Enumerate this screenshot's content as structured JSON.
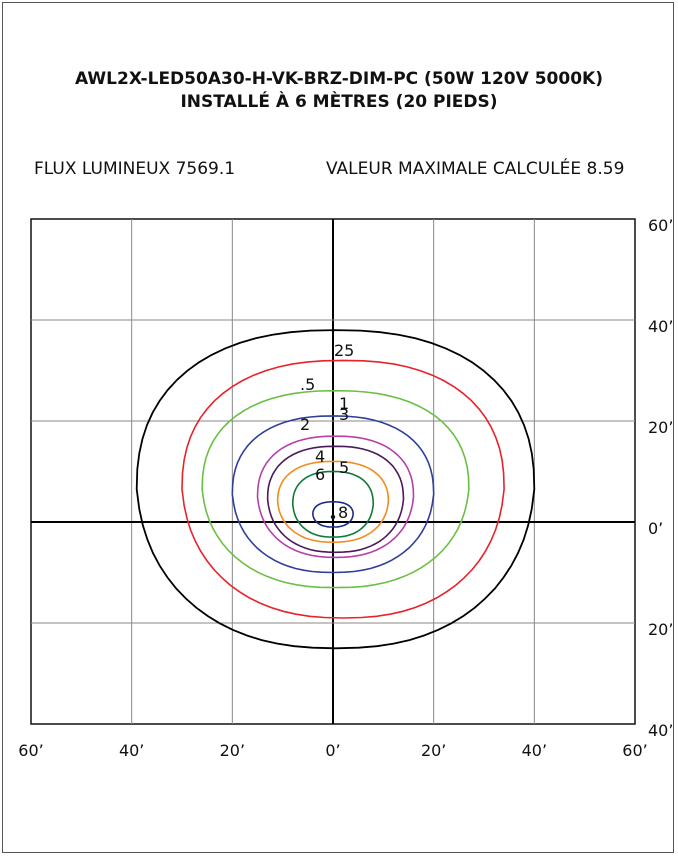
{
  "header": {
    "title_line1": "AWL2X-LED50A30-H-VK-BRZ-DIM-PC (50W 120V 5000K)",
    "title_line2": "INSTALLÉ À 6 MÈTRES (20 PIEDS)"
  },
  "info": {
    "flux_label": "FLUX LUMINEUX 7569.1",
    "max_label": "VALEUR MAXIMALE CALCULÉE 8.59"
  },
  "chart_data": {
    "type": "contour",
    "title": "AWL2X-LED50A30-H-VK-BRZ-DIM-PC (50W 120V 5000K)",
    "subtitle": "INSTALLÉ À 6 MÈTRES (20 PIEDS)",
    "x_range": [
      -60,
      60
    ],
    "y_range": [
      -40,
      60
    ],
    "x_tick_labels": [
      "60’",
      "40’",
      "20’",
      "0’",
      "20’",
      "40’",
      "60’"
    ],
    "y_tick_labels": [
      "60’",
      "40’",
      "20’",
      "0’",
      "20’",
      "40’"
    ],
    "x_ticks": [
      -60,
      -40,
      -20,
      0,
      20,
      40,
      60
    ],
    "y_ticks": [
      60,
      40,
      20,
      0,
      -20,
      -40
    ],
    "grid": true,
    "max_value": 8.59,
    "lumens": 7569.1,
    "contours": [
      {
        "label": "25",
        "color": "#000000",
        "xmin": -39,
        "xmax": 40,
        "ymin": -25,
        "ymax": 38
      },
      {
        "label": ".5",
        "color": "#e8222a",
        "xmin": -30,
        "xmax": 34,
        "ymin": -19,
        "ymax": 32
      },
      {
        "label": "1",
        "color": "#6abf45",
        "xmin": -26,
        "xmax": 27,
        "ymin": -13,
        "ymax": 26
      },
      {
        "label": "2",
        "color": "#2f3f9a",
        "xmin": -20,
        "xmax": 20,
        "ymin": -10,
        "ymax": 21
      },
      {
        "label": "3",
        "color": "#b640a8",
        "xmin": -15,
        "xmax": 16,
        "ymin": -7,
        "ymax": 17
      },
      {
        "label": "4",
        "color": "#4a1a5e",
        "xmin": -13,
        "xmax": 14,
        "ymin": -6,
        "ymax": 15
      },
      {
        "label": "5",
        "color": "#f28c1e",
        "xmin": -11,
        "xmax": 11,
        "ymin": -4,
        "ymax": 12
      },
      {
        "label": "6",
        "color": "#0e7a3a",
        "xmin": -8,
        "xmax": 8,
        "ymin": -3,
        "ymax": 10
      },
      {
        "label": "8",
        "color": "#1a2a8a",
        "xmin": -4,
        "xmax": 4,
        "ymin": -1,
        "ymax": 4
      }
    ]
  }
}
